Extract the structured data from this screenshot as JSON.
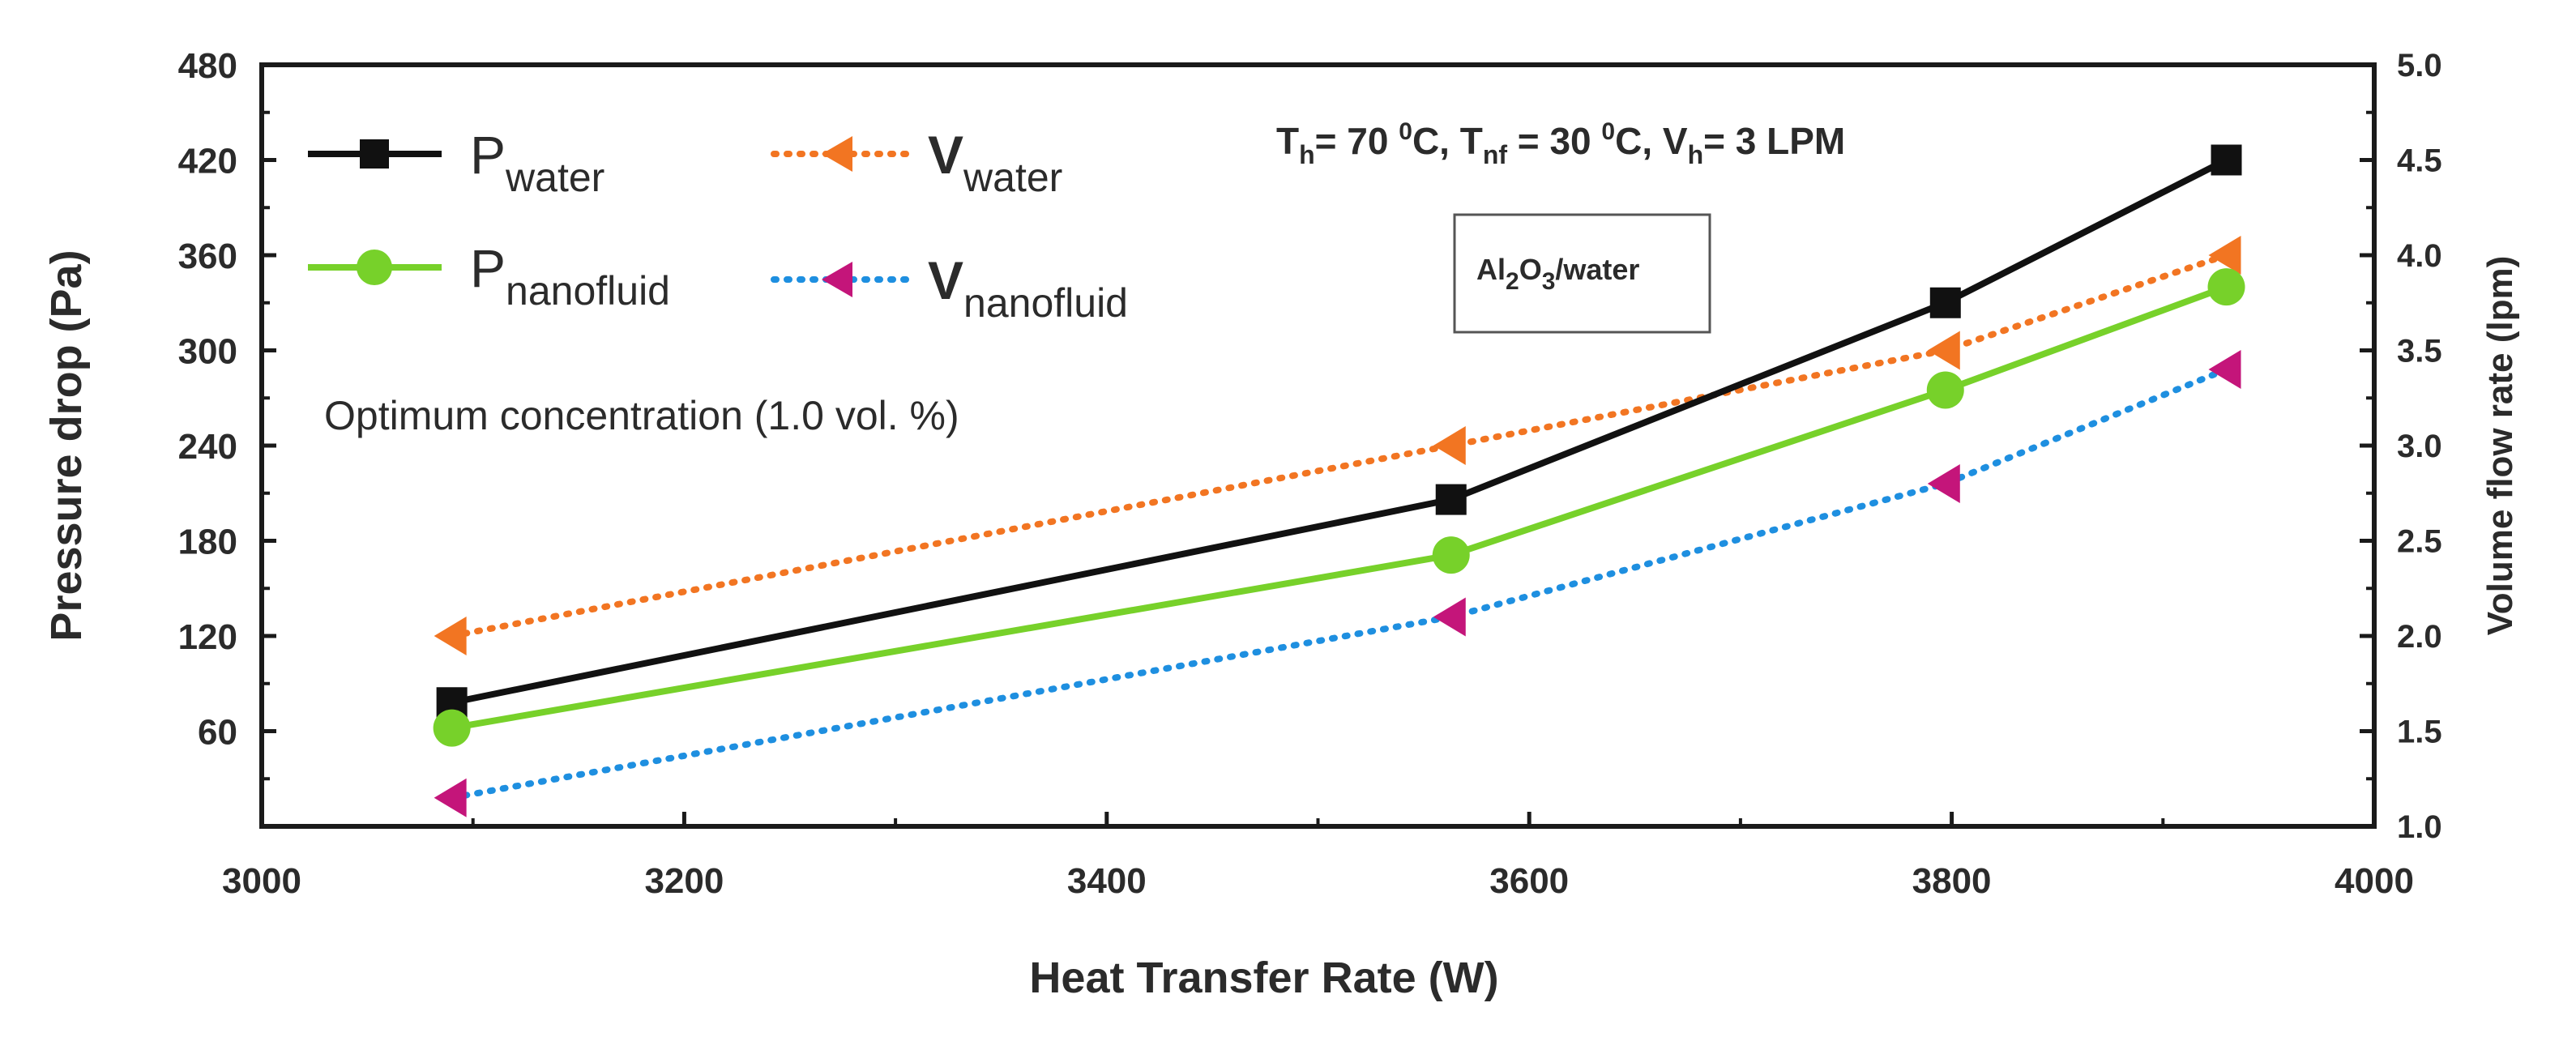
{
  "chart_data": {
    "type": "line",
    "title": "",
    "xlabel": "Heat Transfer Rate (W)",
    "ylabel": "Pressure drop (Pa)",
    "y2label": "Volume flow rate (lpm)",
    "xlim": [
      3000,
      4000
    ],
    "ylim": [
      0,
      480
    ],
    "y2lim": [
      1.0,
      5.0
    ],
    "grid": false,
    "x_ticks": [
      "3000",
      "3200",
      "3400",
      "3600",
      "3800",
      "4000"
    ],
    "x_tick_values": [
      3000,
      3200,
      3400,
      3600,
      3800,
      4000
    ],
    "y_ticks": [
      "60",
      "120",
      "180",
      "240",
      "300",
      "360",
      "420",
      "480"
    ],
    "y_tick_values": [
      60,
      120,
      180,
      240,
      300,
      360,
      420,
      480
    ],
    "y2_ticks": [
      "1.0",
      "1.5",
      "2.0",
      "2.5",
      "3.0",
      "3.5",
      "4.0",
      "4.5",
      "5.0"
    ],
    "y2_tick_values": [
      1.0,
      1.5,
      2.0,
      2.5,
      3.0,
      3.5,
      4.0,
      4.5,
      5.0
    ],
    "series": [
      {
        "name": "P_water",
        "label_main": "P",
        "label_sub": "water",
        "axis": "left",
        "color": "#111111",
        "line": "solid",
        "marker": "square",
        "x": [
          3090,
          3563,
          3797,
          3930
        ],
        "values": [
          78,
          206,
          330,
          420
        ]
      },
      {
        "name": "P_nanofluid",
        "label_main": "P",
        "label_sub": "nanofluid",
        "axis": "left",
        "color": "#77d12a",
        "line": "solid",
        "marker": "circle",
        "x": [
          3090,
          3563,
          3797,
          3930
        ],
        "values": [
          62,
          171,
          275,
          340
        ]
      },
      {
        "name": "V_water",
        "label_main": "V",
        "label_sub": "water",
        "axis": "right",
        "color": "#f27522",
        "line": "dotted",
        "marker": "triangle-left",
        "x": [
          3090,
          3563,
          3797,
          3930
        ],
        "values": [
          2.0,
          3.0,
          3.5,
          4.0
        ]
      },
      {
        "name": "V_nanofluid",
        "label_main": "V",
        "label_sub": "nanofluid",
        "axis": "right",
        "color": "#1e8fe0",
        "marker_color": "#c4157a",
        "line": "dotted",
        "marker": "triangle-left",
        "x": [
          3090,
          3563,
          3797,
          3930
        ],
        "values": [
          1.15,
          2.1,
          2.8,
          3.4
        ]
      }
    ],
    "annotations": {
      "conditions": {
        "th": "T",
        "th_sub": "h",
        "th_val": "= 70 ",
        "th_sup": "0",
        "th_unit": "C, ",
        "tnf": "T",
        "tnf_sub": "nf",
        "tnf_val": " = 30 ",
        "tnf_sup": "0",
        "tnf_unit": "C, ",
        "vh": "V",
        "vh_sub": "h",
        "vh_val": "= 3 LPM"
      },
      "material": {
        "al": "Al",
        "al_sub": "2",
        "o": "O",
        "o_sub": "3",
        "rest": "/water"
      },
      "concentration": "Optimum concentration (1.0 vol. %)"
    },
    "legend_position": "top-left"
  }
}
